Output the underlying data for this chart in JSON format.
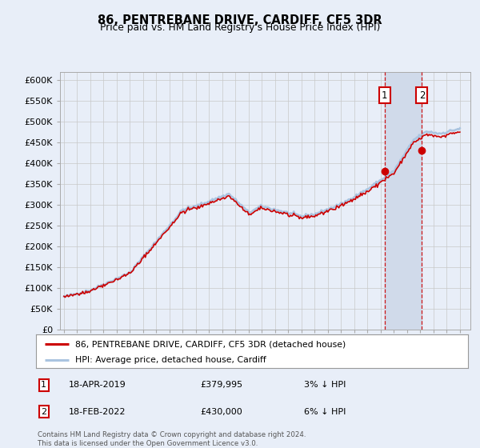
{
  "title": "86, PENTREBANE DRIVE, CARDIFF, CF5 3DR",
  "subtitle": "Price paid vs. HM Land Registry's House Price Index (HPI)",
  "ylabel_ticks": [
    "£0",
    "£50K",
    "£100K",
    "£150K",
    "£200K",
    "£250K",
    "£300K",
    "£350K",
    "£400K",
    "£450K",
    "£500K",
    "£550K",
    "£600K"
  ],
  "ytick_values": [
    0,
    50000,
    100000,
    150000,
    200000,
    250000,
    300000,
    350000,
    400000,
    450000,
    500000,
    550000,
    600000
  ],
  "ylim": [
    0,
    620000
  ],
  "hpi_color": "#aac4e0",
  "price_color": "#cc0000",
  "annotation_color": "#cc0000",
  "marker1_price": 379995,
  "marker1_date": "18-APR-2019",
  "marker1_hpi_pct": "3% ↓ HPI",
  "marker2_price": 430000,
  "marker2_date": "18-FEB-2022",
  "marker2_hpi_pct": "6% ↓ HPI",
  "legend_line1": "86, PENTREBANE DRIVE, CARDIFF, CF5 3DR (detached house)",
  "legend_line2": "HPI: Average price, detached house, Cardiff",
  "footnote": "Contains HM Land Registry data © Crown copyright and database right 2024.\nThis data is licensed under the Open Government Licence v3.0.",
  "background_color": "#e8eef8",
  "plot_bg_color": "#e8eef8",
  "span_bg_color": "#d0daea"
}
